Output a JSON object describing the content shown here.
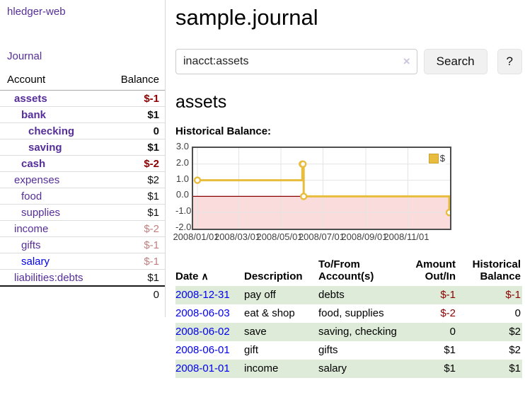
{
  "colors": {
    "purple": "#552e99",
    "blue": "#0000ee",
    "darkred": "#8b0000",
    "rose": "#c08080",
    "rowgreen": "#deebd8",
    "gold": "#e8bc3d"
  },
  "app": {
    "brand": "hledger-web",
    "nav_journal": "Journal"
  },
  "sidebar": {
    "table_headers": {
      "account": "Account",
      "balance": "Balance"
    },
    "accounts": [
      {
        "name": "assets",
        "indent": 1,
        "bold": true,
        "link": "purple",
        "balance": "$-1",
        "balance_color": "darkred"
      },
      {
        "name": "bank",
        "indent": 2,
        "bold": true,
        "link": "purple",
        "balance": "$1",
        "balance_color": "black"
      },
      {
        "name": "checking",
        "indent": 3,
        "bold": true,
        "link": "purple",
        "balance": "0",
        "balance_color": "black"
      },
      {
        "name": "saving",
        "indent": 3,
        "bold": true,
        "link": "purple",
        "balance": "$1",
        "balance_color": "black"
      },
      {
        "name": "cash",
        "indent": 2,
        "bold": true,
        "link": "purple",
        "balance": "$-2",
        "balance_color": "darkred"
      },
      {
        "name": "expenses",
        "indent": 1,
        "bold": false,
        "link": "purple",
        "balance": "$2",
        "balance_color": "black"
      },
      {
        "name": "food",
        "indent": 2,
        "bold": false,
        "link": "purple",
        "balance": "$1",
        "balance_color": "black"
      },
      {
        "name": "supplies",
        "indent": 2,
        "bold": false,
        "link": "purple",
        "balance": "$1",
        "balance_color": "black"
      },
      {
        "name": "income",
        "indent": 1,
        "bold": false,
        "link": "purple",
        "balance": "$-2",
        "balance_color": "rose"
      },
      {
        "name": "gifts",
        "indent": 2,
        "bold": false,
        "link": "purple",
        "balance": "$-1",
        "balance_color": "rose"
      },
      {
        "name": "salary",
        "indent": 2,
        "bold": false,
        "link": "blue",
        "balance": "$-1",
        "balance_color": "rose"
      },
      {
        "name": "liabilities:debts",
        "indent": 1,
        "bold": false,
        "link": "purple",
        "balance": "$1",
        "balance_color": "black"
      }
    ],
    "total": "0"
  },
  "header": {
    "title": "sample.journal"
  },
  "search": {
    "value": "inacct:assets",
    "clear_icon": "×",
    "button": "Search",
    "help": "?"
  },
  "account_page": {
    "heading": "assets",
    "chart_label": "Historical Balance:"
  },
  "chart_data": {
    "type": "line",
    "step": true,
    "title": "Historical Balance:",
    "series": [
      {
        "name": "$",
        "color": "#e8bc3d",
        "points": [
          {
            "date": "2008-01-01",
            "value": 1
          },
          {
            "date": "2008-06-01",
            "value": 2
          },
          {
            "date": "2008-06-02",
            "value": 2
          },
          {
            "date": "2008-06-03",
            "value": 0
          },
          {
            "date": "2008-12-31",
            "value": -1
          }
        ]
      }
    ],
    "ylim": [
      -2,
      3
    ],
    "yticks": [
      "3.0",
      "2.0",
      "1.0",
      "0.0",
      "-1.0",
      "-2.0"
    ],
    "xticks": [
      "2008/01/01",
      "2008/03/01",
      "2008/05/01",
      "2008/07/01",
      "2008/09/01",
      "2008/11/01"
    ],
    "grid": true,
    "legend_position": "top-right",
    "negative_fill": "#fadcdc",
    "zero_line_color": "#8b0000"
  },
  "register": {
    "headers": [
      "Date",
      "Description",
      "To/From Account(s)",
      "Amount Out/In",
      "Historical Balance"
    ],
    "sort_indicator": "∧",
    "rows": [
      {
        "date": "2008-12-31",
        "description": "pay off",
        "accounts": "debts",
        "amount": "$-1",
        "amount_neg": true,
        "balance": "$-1",
        "balance_neg": true,
        "shade": true
      },
      {
        "date": "2008-06-03",
        "description": "eat & shop",
        "accounts": "food, supplies",
        "amount": "$-2",
        "amount_neg": true,
        "balance": "0",
        "balance_neg": false,
        "shade": false
      },
      {
        "date": "2008-06-02",
        "description": "save",
        "accounts": "saving, checking",
        "amount": "0",
        "amount_neg": false,
        "balance": "$2",
        "balance_neg": false,
        "shade": true
      },
      {
        "date": "2008-06-01",
        "description": "gift",
        "accounts": "gifts",
        "amount": "$1",
        "amount_neg": false,
        "balance": "$2",
        "balance_neg": false,
        "shade": false
      },
      {
        "date": "2008-01-01",
        "description": "income",
        "accounts": "salary",
        "amount": "$1",
        "amount_neg": false,
        "balance": "$1",
        "balance_neg": false,
        "shade": true
      }
    ]
  }
}
